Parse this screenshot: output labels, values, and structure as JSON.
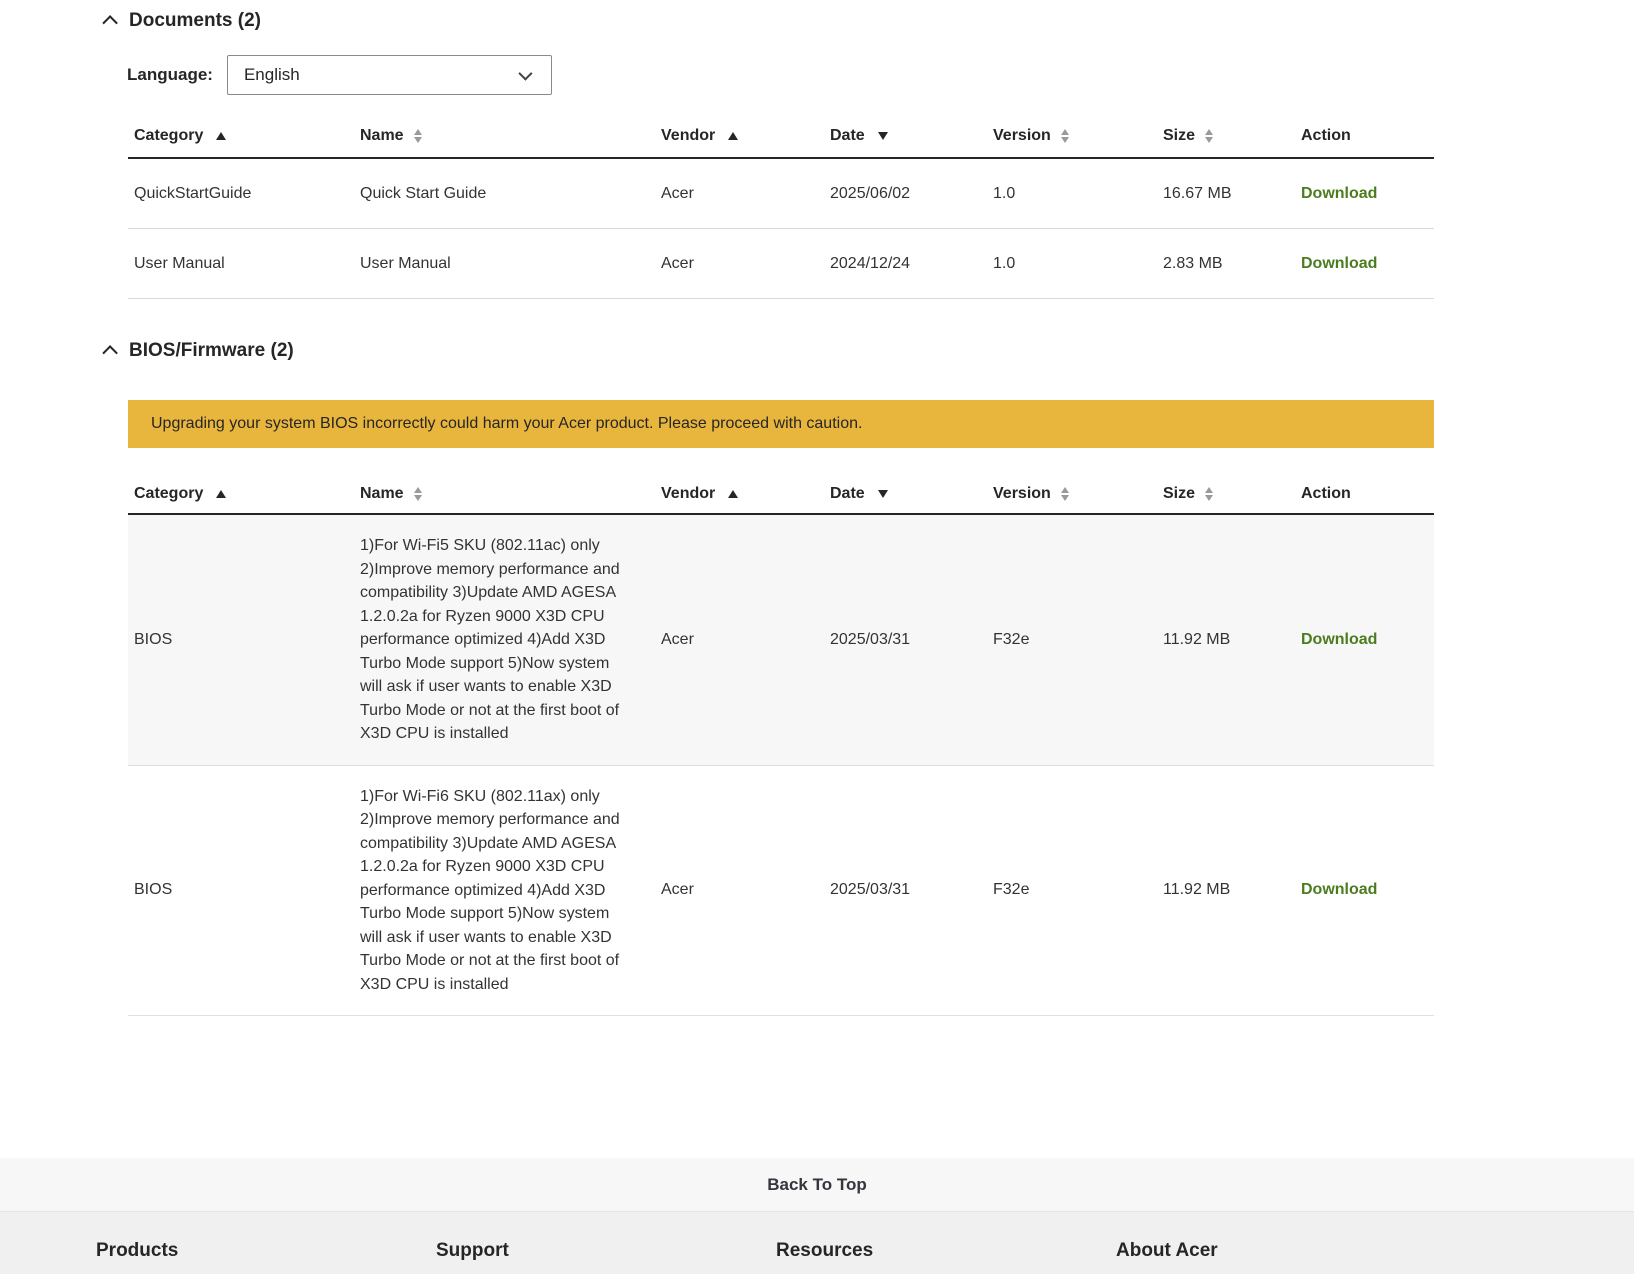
{
  "colors": {
    "download_link_green": "#4b7d1f",
    "warning_banner_bg": "#e9b63d",
    "table_header_border": "#262626",
    "row_divider": "#d9d9d9",
    "bios_row_alt_bg": "#f7f7f7",
    "back_to_top_band_bg": "#f7f7f7",
    "footer_band_bg": "#f0f0f0"
  },
  "icons": {
    "section_collapse": "chevron-up",
    "language_dropdown": "chevron-down",
    "sort_ascending": "triangle-up",
    "sort_descending": "triangle-down",
    "sort_unsorted": "triangle-up-down"
  },
  "documents": {
    "title": "Documents (2)",
    "language_label": "Language:",
    "language_value": "English",
    "columns": [
      {
        "label": "Category",
        "sort": "asc"
      },
      {
        "label": "Name",
        "sort": "none"
      },
      {
        "label": "Vendor",
        "sort": "asc"
      },
      {
        "label": "Date",
        "sort": "desc"
      },
      {
        "label": "Version",
        "sort": "none"
      },
      {
        "label": "Size",
        "sort": "none"
      },
      {
        "label": "Action",
        "sort": "not-sortable"
      }
    ],
    "rows": [
      {
        "category": "QuickStartGuide",
        "name": "Quick Start Guide",
        "vendor": "Acer",
        "date": "2025/06/02",
        "version": "1.0",
        "size": "16.67 MB",
        "action": "Download"
      },
      {
        "category": "User Manual",
        "name": "User Manual",
        "vendor": "Acer",
        "date": "2024/12/24",
        "version": "1.0",
        "size": "2.83 MB",
        "action": "Download"
      }
    ]
  },
  "bios": {
    "title": "BIOS/Firmware (2)",
    "warning": "Upgrading your system BIOS incorrectly could harm your Acer product. Please proceed with caution.",
    "columns": [
      {
        "label": "Category",
        "sort": "asc"
      },
      {
        "label": "Name",
        "sort": "none"
      },
      {
        "label": "Vendor",
        "sort": "asc"
      },
      {
        "label": "Date",
        "sort": "desc"
      },
      {
        "label": "Version",
        "sort": "none"
      },
      {
        "label": "Size",
        "sort": "none"
      },
      {
        "label": "Action",
        "sort": "not-sortable"
      }
    ],
    "rows": [
      {
        "category": "BIOS",
        "name": "1)For Wi-Fi5 SKU (802.11ac) only 2)Improve memory performance and compatibility 3)Update AMD AGESA 1.2.0.2a for Ryzen 9000 X3D CPU performance optimized 4)Add X3D Turbo Mode support 5)Now system will ask if user wants to enable X3D Turbo Mode or not at the first boot of X3D CPU is installed",
        "vendor": "Acer",
        "date": "2025/03/31",
        "version": "F32e",
        "size": "11.92 MB",
        "action": "Download"
      },
      {
        "category": "BIOS",
        "name": "1)For Wi-Fi6 SKU (802.11ax) only 2)Improve memory performance and compatibility 3)Update AMD AGESA 1.2.0.2a for Ryzen 9000 X3D CPU performance optimized 4)Add X3D Turbo Mode support 5)Now system will ask if user wants to enable X3D Turbo Mode or not at the first boot of X3D CPU is installed",
        "vendor": "Acer",
        "date": "2025/03/31",
        "version": "F32e",
        "size": "11.92 MB",
        "action": "Download"
      }
    ]
  },
  "footer": {
    "back_to_top": "Back To Top",
    "columns": [
      "Products",
      "Support",
      "Resources",
      "About Acer"
    ]
  }
}
